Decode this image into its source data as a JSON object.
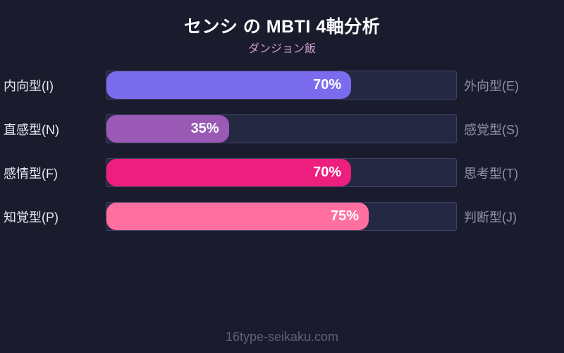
{
  "header": {
    "title": "センシ の MBTI 4軸分析",
    "subtitle": "ダンジョン飯"
  },
  "chart_data": {
    "type": "bar",
    "orientation": "horizontal",
    "title": "センシ の MBTI 4軸分析",
    "subtitle": "ダンジョン飯",
    "xlim": [
      0,
      100
    ],
    "grid": false,
    "legend": "none",
    "rows": [
      {
        "left_label": "内向型(I)",
        "right_label": "外向型(E)",
        "value": 70,
        "value_label": "70%",
        "bar_color": "#7b6cee"
      },
      {
        "left_label": "直感型(N)",
        "right_label": "感覚型(S)",
        "value": 35,
        "value_label": "35%",
        "bar_color": "#9b59b6"
      },
      {
        "left_label": "感情型(F)",
        "right_label": "思考型(T)",
        "value": 70,
        "value_label": "70%",
        "bar_color": "#ec1e7e"
      },
      {
        "left_label": "知覚型(P)",
        "right_label": "判断型(J)",
        "value": 75,
        "value_label": "75%",
        "bar_color": "#ff6f9f"
      }
    ]
  },
  "colors": {
    "background": "#1a1c2e",
    "track": "#242842",
    "track_border": "#3e4363",
    "title_text": "#ffffff",
    "subtitle_text": "#cd9ed0",
    "left_label_text": "#e9e9f2",
    "right_label_text": "#8f91a8",
    "footer_text": "#5d6078"
  },
  "footer": {
    "site": "16type-seikaku.com"
  }
}
